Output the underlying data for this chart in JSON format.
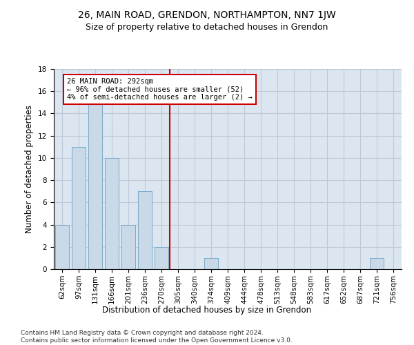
{
  "title": "26, MAIN ROAD, GRENDON, NORTHAMPTON, NN7 1JW",
  "subtitle": "Size of property relative to detached houses in Grendon",
  "xlabel": "Distribution of detached houses by size in Grendon",
  "ylabel": "Number of detached properties",
  "categories": [
    "62sqm",
    "97sqm",
    "131sqm",
    "166sqm",
    "201sqm",
    "236sqm",
    "270sqm",
    "305sqm",
    "340sqm",
    "374sqm",
    "409sqm",
    "444sqm",
    "478sqm",
    "513sqm",
    "548sqm",
    "583sqm",
    "617sqm",
    "652sqm",
    "687sqm",
    "721sqm",
    "756sqm"
  ],
  "values": [
    4,
    11,
    15,
    10,
    4,
    7,
    2,
    0,
    0,
    1,
    0,
    0,
    0,
    0,
    0,
    0,
    0,
    0,
    0,
    1,
    0
  ],
  "bar_color": "#c9d9e8",
  "bar_edge_color": "#7aaac8",
  "vline_color": "#cc0000",
  "annotation_text": "26 MAIN ROAD: 292sqm\n← 96% of detached houses are smaller (52)\n4% of semi-detached houses are larger (2) →",
  "annotation_box_edge_color": "#cc0000",
  "ylim": [
    0,
    18
  ],
  "yticks": [
    0,
    2,
    4,
    6,
    8,
    10,
    12,
    14,
    16,
    18
  ],
  "grid_color": "#c0c8d8",
  "background_color": "#dce6f0",
  "footer": "Contains HM Land Registry data © Crown copyright and database right 2024.\nContains public sector information licensed under the Open Government Licence v3.0.",
  "title_fontsize": 10,
  "subtitle_fontsize": 9,
  "xlabel_fontsize": 8.5,
  "ylabel_fontsize": 8.5,
  "tick_fontsize": 7.5,
  "annotation_fontsize": 7.5,
  "footer_fontsize": 6.5
}
